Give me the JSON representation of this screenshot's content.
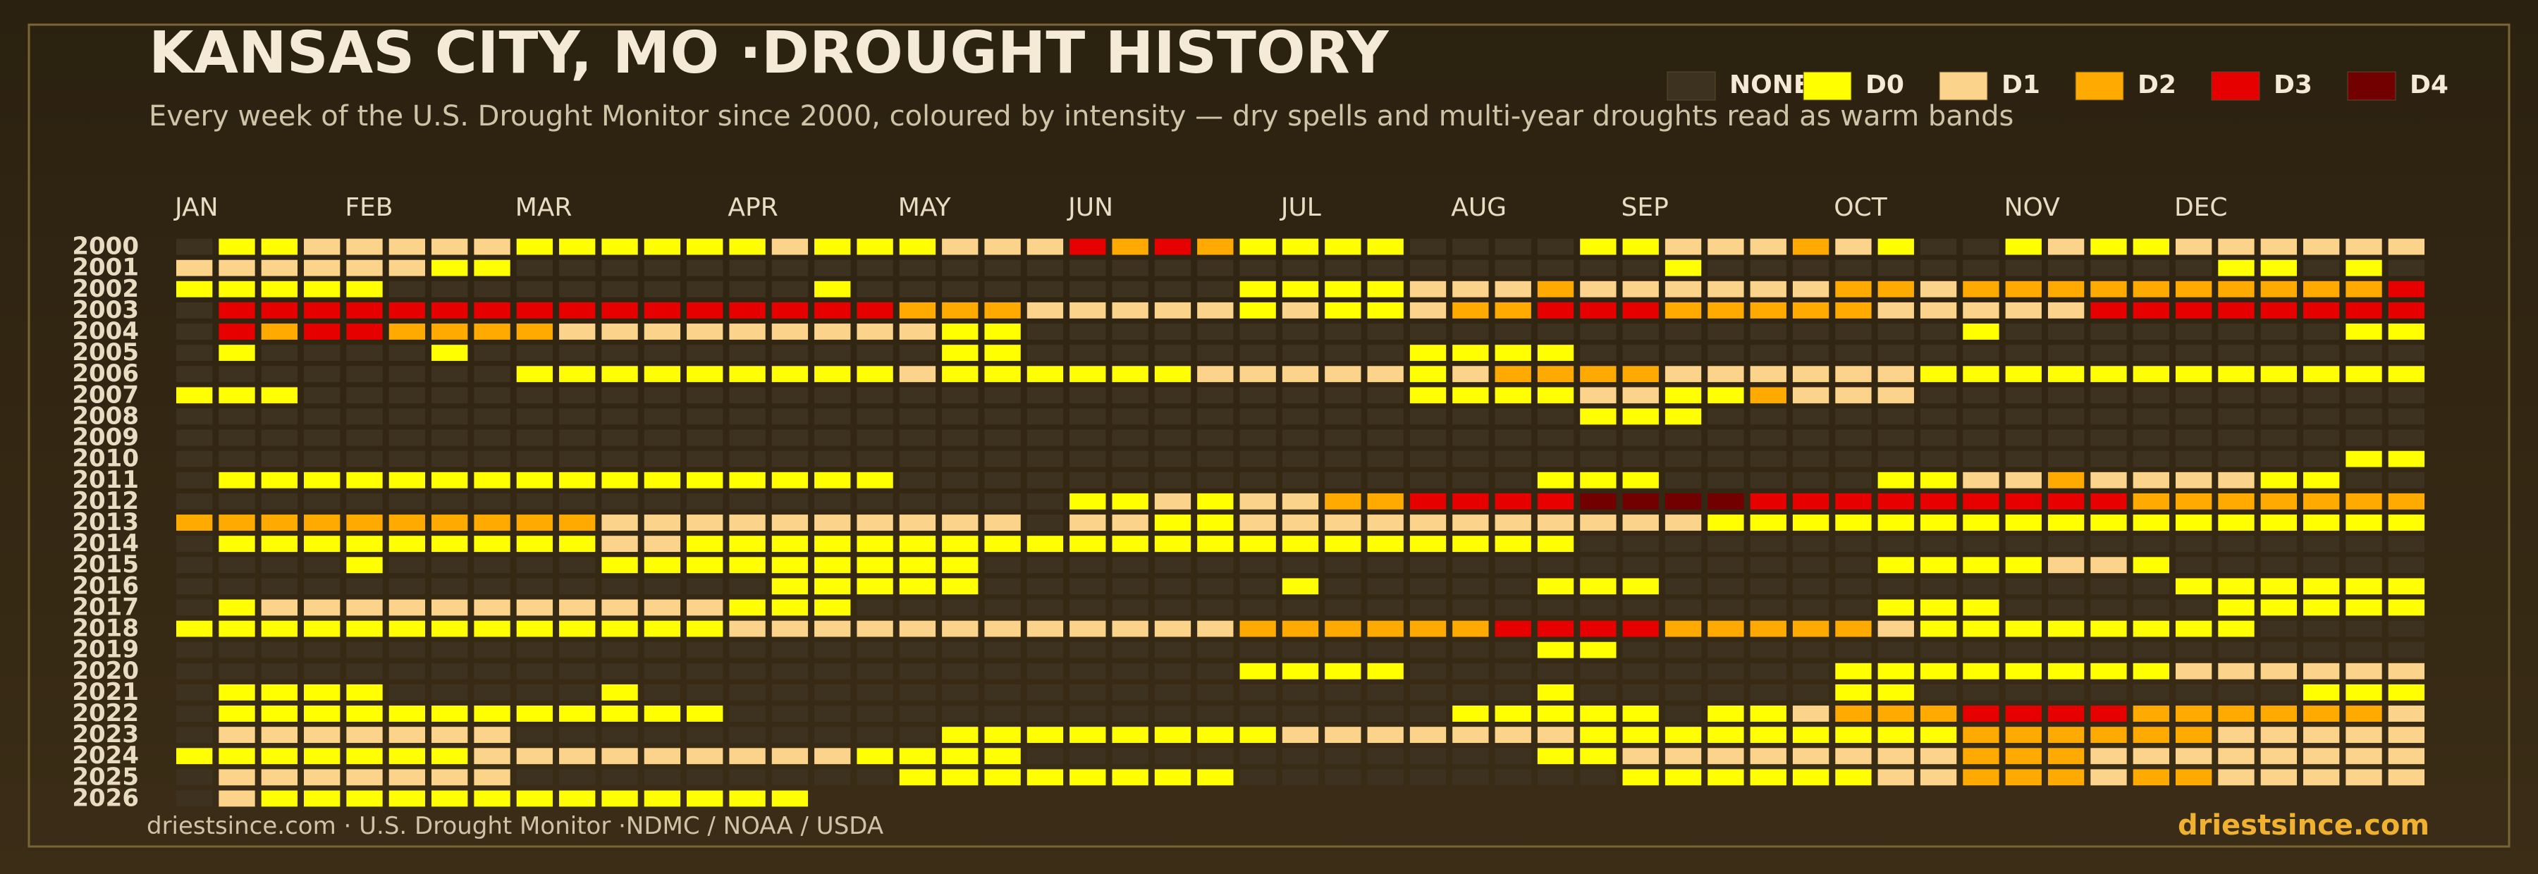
{
  "chart_data": {
    "type": "heatmap",
    "title": "KANSAS CITY, MO ·DROUGHT HISTORY",
    "subtitle": "Every week of the U.S. Drought Monitor since 2000, coloured by intensity — dry spells and multi-year droughts read as warm bands",
    "source": "driestsince.com  · U.S. Drought Monitor ·NDMC / NOAA / USDA",
    "brand": "driestsince.com",
    "levels": [
      {
        "name": "NONE",
        "color": "#3d3120"
      },
      {
        "name": "D0",
        "color": "#ffff00"
      },
      {
        "name": "D1",
        "color": "#fcd38a"
      },
      {
        "name": "D2",
        "color": "#ffaa00"
      },
      {
        "name": "D3",
        "color": "#e60000"
      },
      {
        "name": "D4",
        "color": "#730000"
      }
    ],
    "xlim": [
      0,
      53
    ],
    "xticks": [
      {
        "value": 0,
        "label": "JAN"
      },
      {
        "value": 4,
        "label": "FEB"
      },
      {
        "value": 8,
        "label": "MAR"
      },
      {
        "value": 13,
        "label": "APR"
      },
      {
        "value": 17,
        "label": "MAY"
      },
      {
        "value": 21,
        "label": "JUN"
      },
      {
        "value": 26,
        "label": "JUL"
      },
      {
        "value": 30,
        "label": "AUG"
      },
      {
        "value": 34,
        "label": "SEP"
      },
      {
        "value": 39,
        "label": "OCT"
      },
      {
        "value": 43,
        "label": "NOV"
      },
      {
        "value": 47,
        "label": "DEC"
      }
    ],
    "rows": [
      2000,
      2001,
      2002,
      2003,
      2004,
      2005,
      2006,
      2007,
      2008,
      2009,
      2010,
      2011,
      2012,
      2013,
      2014,
      2015,
      2016,
      2017,
      2018,
      2019,
      2020,
      2021,
      2022,
      2023,
      2024,
      2025,
      2026
    ],
    "values": [
      [
        0,
        1,
        1,
        2,
        2,
        2,
        2,
        2,
        1,
        1,
        1,
        1,
        1,
        1,
        2,
        1,
        1,
        1,
        2,
        2,
        2,
        4,
        3,
        4,
        3,
        1,
        1,
        1,
        1,
        0,
        0,
        0,
        0,
        1,
        1,
        2,
        2,
        2,
        3,
        2,
        1,
        0,
        0,
        1,
        2,
        1,
        1,
        2,
        2,
        2,
        2,
        2,
        2
      ],
      [
        2,
        2,
        2,
        2,
        2,
        2,
        1,
        1,
        0,
        0,
        0,
        0,
        0,
        0,
        0,
        0,
        0,
        0,
        0,
        0,
        0,
        0,
        0,
        0,
        0,
        0,
        0,
        0,
        0,
        0,
        0,
        0,
        0,
        0,
        0,
        1,
        0,
        0,
        0,
        0,
        0,
        0,
        0,
        0,
        0,
        0,
        0,
        0,
        1,
        1,
        0,
        1,
        0
      ],
      [
        1,
        1,
        1,
        1,
        1,
        0,
        0,
        0,
        0,
        0,
        0,
        0,
        0,
        0,
        0,
        1,
        0,
        0,
        0,
        0,
        0,
        0,
        0,
        0,
        0,
        1,
        1,
        1,
        1,
        2,
        2,
        2,
        3,
        2,
        2,
        2,
        2,
        2,
        2,
        3,
        3,
        2,
        3,
        3,
        3,
        3,
        3,
        3,
        3,
        3,
        3,
        3,
        4
      ],
      [
        0,
        4,
        4,
        4,
        4,
        4,
        4,
        4,
        4,
        4,
        4,
        4,
        4,
        4,
        4,
        4,
        4,
        3,
        3,
        3,
        2,
        2,
        2,
        2,
        2,
        1,
        2,
        1,
        1,
        2,
        3,
        3,
        4,
        4,
        4,
        3,
        3,
        3,
        3,
        3,
        2,
        2,
        2,
        2,
        2,
        4,
        4,
        4,
        4,
        4,
        4,
        4,
        4
      ],
      [
        0,
        4,
        3,
        4,
        4,
        3,
        3,
        3,
        3,
        2,
        2,
        2,
        2,
        2,
        2,
        2,
        2,
        2,
        1,
        1,
        0,
        0,
        0,
        0,
        0,
        0,
        0,
        0,
        0,
        0,
        0,
        0,
        0,
        0,
        0,
        0,
        0,
        0,
        0,
        0,
        0,
        0,
        1,
        0,
        0,
        0,
        0,
        0,
        0,
        0,
        0,
        1,
        1
      ],
      [
        0,
        1,
        0,
        0,
        0,
        0,
        1,
        0,
        0,
        0,
        0,
        0,
        0,
        0,
        0,
        0,
        0,
        0,
        1,
        1,
        0,
        0,
        0,
        0,
        0,
        0,
        0,
        0,
        0,
        1,
        1,
        1,
        1,
        0,
        0,
        0,
        0,
        0,
        0,
        0,
        0,
        0,
        0,
        0,
        0,
        0,
        0,
        0,
        0,
        0,
        0,
        0,
        0
      ],
      [
        0,
        0,
        0,
        0,
        0,
        0,
        0,
        0,
        1,
        1,
        1,
        1,
        1,
        1,
        1,
        1,
        1,
        2,
        1,
        1,
        1,
        1,
        1,
        1,
        2,
        2,
        2,
        2,
        2,
        1,
        2,
        3,
        3,
        3,
        3,
        2,
        2,
        2,
        2,
        2,
        2,
        1,
        1,
        1,
        1,
        1,
        1,
        1,
        1,
        1,
        1,
        1,
        1
      ],
      [
        1,
        1,
        1,
        0,
        0,
        0,
        0,
        0,
        0,
        0,
        0,
        0,
        0,
        0,
        0,
        0,
        0,
        0,
        0,
        0,
        0,
        0,
        0,
        0,
        0,
        0,
        0,
        0,
        0,
        1,
        1,
        1,
        1,
        2,
        2,
        1,
        1,
        3,
        2,
        2,
        2,
        0,
        0,
        0,
        0,
        0,
        0,
        0,
        0,
        0,
        0,
        0,
        0
      ],
      [
        0,
        0,
        0,
        0,
        0,
        0,
        0,
        0,
        0,
        0,
        0,
        0,
        0,
        0,
        0,
        0,
        0,
        0,
        0,
        0,
        0,
        0,
        0,
        0,
        0,
        0,
        0,
        0,
        0,
        0,
        0,
        0,
        0,
        1,
        1,
        1,
        0,
        0,
        0,
        0,
        0,
        0,
        0,
        0,
        0,
        0,
        0,
        0,
        0,
        0,
        0,
        0,
        0
      ],
      [
        0,
        0,
        0,
        0,
        0,
        0,
        0,
        0,
        0,
        0,
        0,
        0,
        0,
        0,
        0,
        0,
        0,
        0,
        0,
        0,
        0,
        0,
        0,
        0,
        0,
        0,
        0,
        0,
        0,
        0,
        0,
        0,
        0,
        0,
        0,
        0,
        0,
        0,
        0,
        0,
        0,
        0,
        0,
        0,
        0,
        0,
        0,
        0,
        0,
        0,
        0,
        0,
        0
      ],
      [
        0,
        0,
        0,
        0,
        0,
        0,
        0,
        0,
        0,
        0,
        0,
        0,
        0,
        0,
        0,
        0,
        0,
        0,
        0,
        0,
        0,
        0,
        0,
        0,
        0,
        0,
        0,
        0,
        0,
        0,
        0,
        0,
        0,
        0,
        0,
        0,
        0,
        0,
        0,
        0,
        0,
        0,
        0,
        0,
        0,
        0,
        0,
        0,
        0,
        0,
        0,
        1,
        1
      ],
      [
        0,
        1,
        1,
        1,
        1,
        1,
        1,
        1,
        1,
        1,
        1,
        1,
        1,
        1,
        1,
        1,
        1,
        0,
        0,
        0,
        0,
        0,
        0,
        0,
        0,
        0,
        0,
        0,
        0,
        0,
        0,
        0,
        1,
        1,
        1,
        0,
        0,
        0,
        0,
        0,
        1,
        1,
        2,
        2,
        3,
        2,
        2,
        2,
        2,
        1,
        1,
        0,
        0
      ],
      [
        0,
        0,
        0,
        0,
        0,
        0,
        0,
        0,
        0,
        0,
        0,
        0,
        0,
        0,
        0,
        0,
        0,
        0,
        0,
        0,
        0,
        1,
        1,
        2,
        1,
        2,
        2,
        3,
        3,
        4,
        4,
        4,
        4,
        5,
        5,
        5,
        5,
        4,
        4,
        4,
        4,
        4,
        4,
        4,
        4,
        4,
        3,
        3,
        3,
        3,
        3,
        3,
        3
      ],
      [
        3,
        3,
        3,
        3,
        3,
        3,
        3,
        3,
        3,
        3,
        2,
        2,
        2,
        2,
        2,
        2,
        2,
        2,
        2,
        2,
        0,
        2,
        2,
        1,
        1,
        2,
        2,
        2,
        2,
        2,
        2,
        2,
        2,
        2,
        2,
        2,
        1,
        1,
        1,
        1,
        1,
        1,
        1,
        1,
        1,
        1,
        1,
        1,
        1,
        1,
        1,
        1,
        1
      ],
      [
        0,
        1,
        1,
        1,
        1,
        1,
        1,
        1,
        1,
        1,
        2,
        2,
        1,
        1,
        1,
        1,
        1,
        1,
        1,
        1,
        1,
        1,
        1,
        1,
        1,
        1,
        1,
        1,
        1,
        1,
        1,
        1,
        1,
        0,
        0,
        0,
        0,
        0,
        0,
        0,
        0,
        0,
        0,
        0,
        0,
        0,
        0,
        0,
        0,
        0,
        0,
        0,
        0
      ],
      [
        0,
        0,
        0,
        0,
        1,
        0,
        0,
        0,
        0,
        0,
        1,
        1,
        1,
        1,
        1,
        1,
        1,
        1,
        1,
        0,
        0,
        0,
        0,
        0,
        0,
        0,
        0,
        0,
        0,
        0,
        0,
        0,
        0,
        0,
        0,
        0,
        0,
        0,
        0,
        0,
        1,
        1,
        1,
        1,
        2,
        2,
        1,
        0,
        0,
        0,
        0,
        0,
        0
      ],
      [
        0,
        0,
        0,
        0,
        0,
        0,
        0,
        0,
        0,
        0,
        0,
        0,
        0,
        0,
        1,
        1,
        1,
        1,
        1,
        0,
        0,
        0,
        0,
        0,
        0,
        0,
        1,
        0,
        0,
        0,
        0,
        0,
        1,
        1,
        1,
        0,
        0,
        0,
        0,
        0,
        0,
        0,
        0,
        0,
        0,
        0,
        0,
        1,
        1,
        1,
        1,
        1,
        1
      ],
      [
        0,
        1,
        2,
        2,
        2,
        2,
        2,
        2,
        2,
        2,
        2,
        2,
        2,
        1,
        1,
        1,
        0,
        0,
        0,
        0,
        0,
        0,
        0,
        0,
        0,
        0,
        0,
        0,
        0,
        0,
        0,
        0,
        0,
        0,
        0,
        0,
        0,
        0,
        0,
        0,
        1,
        1,
        1,
        0,
        0,
        0,
        0,
        0,
        1,
        1,
        1,
        1,
        1
      ],
      [
        1,
        1,
        1,
        1,
        1,
        1,
        1,
        1,
        1,
        1,
        1,
        1,
        1,
        2,
        2,
        2,
        2,
        2,
        2,
        2,
        2,
        2,
        2,
        2,
        2,
        3,
        3,
        3,
        3,
        3,
        3,
        4,
        4,
        4,
        4,
        3,
        3,
        3,
        3,
        3,
        2,
        1,
        1,
        1,
        1,
        1,
        1,
        1,
        1,
        0,
        0,
        0,
        0
      ],
      [
        0,
        0,
        0,
        0,
        0,
        0,
        0,
        0,
        0,
        0,
        0,
        0,
        0,
        0,
        0,
        0,
        0,
        0,
        0,
        0,
        0,
        0,
        0,
        0,
        0,
        0,
        0,
        0,
        0,
        0,
        0,
        0,
        1,
        1,
        0,
        0,
        0,
        0,
        0,
        0,
        0,
        0,
        0,
        0,
        0,
        0,
        0,
        0,
        0,
        0,
        0,
        0,
        0
      ],
      [
        0,
        0,
        0,
        0,
        0,
        0,
        0,
        0,
        0,
        0,
        0,
        0,
        0,
        0,
        0,
        0,
        0,
        0,
        0,
        0,
        0,
        0,
        0,
        0,
        0,
        1,
        1,
        1,
        1,
        0,
        0,
        0,
        0,
        0,
        0,
        0,
        0,
        0,
        0,
        1,
        1,
        1,
        1,
        1,
        1,
        1,
        1,
        2,
        2,
        2,
        2,
        2,
        2
      ],
      [
        0,
        1,
        1,
        1,
        1,
        0,
        0,
        0,
        0,
        0,
        1,
        0,
        0,
        0,
        0,
        0,
        0,
        0,
        0,
        0,
        0,
        0,
        0,
        0,
        0,
        0,
        0,
        0,
        0,
        0,
        0,
        0,
        1,
        0,
        0,
        0,
        0,
        0,
        0,
        1,
        1,
        0,
        0,
        0,
        0,
        0,
        0,
        0,
        0,
        0,
        1,
        1,
        1
      ],
      [
        0,
        1,
        1,
        1,
        1,
        1,
        1,
        1,
        1,
        1,
        1,
        1,
        1,
        0,
        0,
        0,
        0,
        0,
        0,
        0,
        0,
        0,
        0,
        0,
        0,
        0,
        0,
        0,
        0,
        0,
        1,
        1,
        1,
        1,
        1,
        0,
        1,
        1,
        2,
        3,
        3,
        3,
        4,
        4,
        4,
        4,
        3,
        3,
        3,
        3,
        3,
        3,
        2
      ],
      [
        0,
        2,
        2,
        2,
        2,
        2,
        2,
        2,
        0,
        0,
        0,
        0,
        0,
        0,
        0,
        0,
        0,
        0,
        1,
        1,
        1,
        1,
        1,
        1,
        1,
        1,
        2,
        2,
        2,
        2,
        2,
        2,
        2,
        1,
        1,
        1,
        1,
        1,
        1,
        1,
        1,
        1,
        3,
        3,
        3,
        3,
        3,
        3,
        2,
        2,
        2,
        2,
        2
      ],
      [
        1,
        1,
        1,
        1,
        1,
        1,
        1,
        2,
        2,
        2,
        2,
        2,
        2,
        2,
        2,
        2,
        1,
        1,
        1,
        1,
        0,
        0,
        0,
        0,
        0,
        0,
        0,
        0,
        0,
        0,
        0,
        0,
        1,
        1,
        2,
        2,
        2,
        2,
        2,
        2,
        2,
        2,
        3,
        3,
        3,
        2,
        2,
        2,
        2,
        2,
        2,
        2,
        2
      ],
      [
        0,
        2,
        2,
        2,
        2,
        2,
        2,
        2,
        0,
        0,
        0,
        0,
        0,
        0,
        0,
        0,
        0,
        1,
        1,
        1,
        1,
        1,
        1,
        1,
        1,
        0,
        0,
        0,
        0,
        0,
        0,
        0,
        0,
        0,
        1,
        1,
        1,
        1,
        1,
        1,
        2,
        2,
        3,
        3,
        3,
        2,
        3,
        3,
        2,
        2,
        2,
        2,
        2
      ],
      [
        0,
        2,
        1,
        1,
        1,
        1,
        1,
        1,
        1,
        1,
        1,
        1,
        1,
        1,
        1,
        null,
        null,
        null,
        null,
        null,
        null,
        null,
        null,
        null,
        null,
        null,
        null,
        null,
        null,
        null,
        null,
        null,
        null,
        null,
        null,
        null,
        null,
        null,
        null,
        null,
        null,
        null,
        null,
        null,
        null,
        null,
        null,
        null,
        null,
        null,
        null,
        null,
        null
      ]
    ]
  }
}
